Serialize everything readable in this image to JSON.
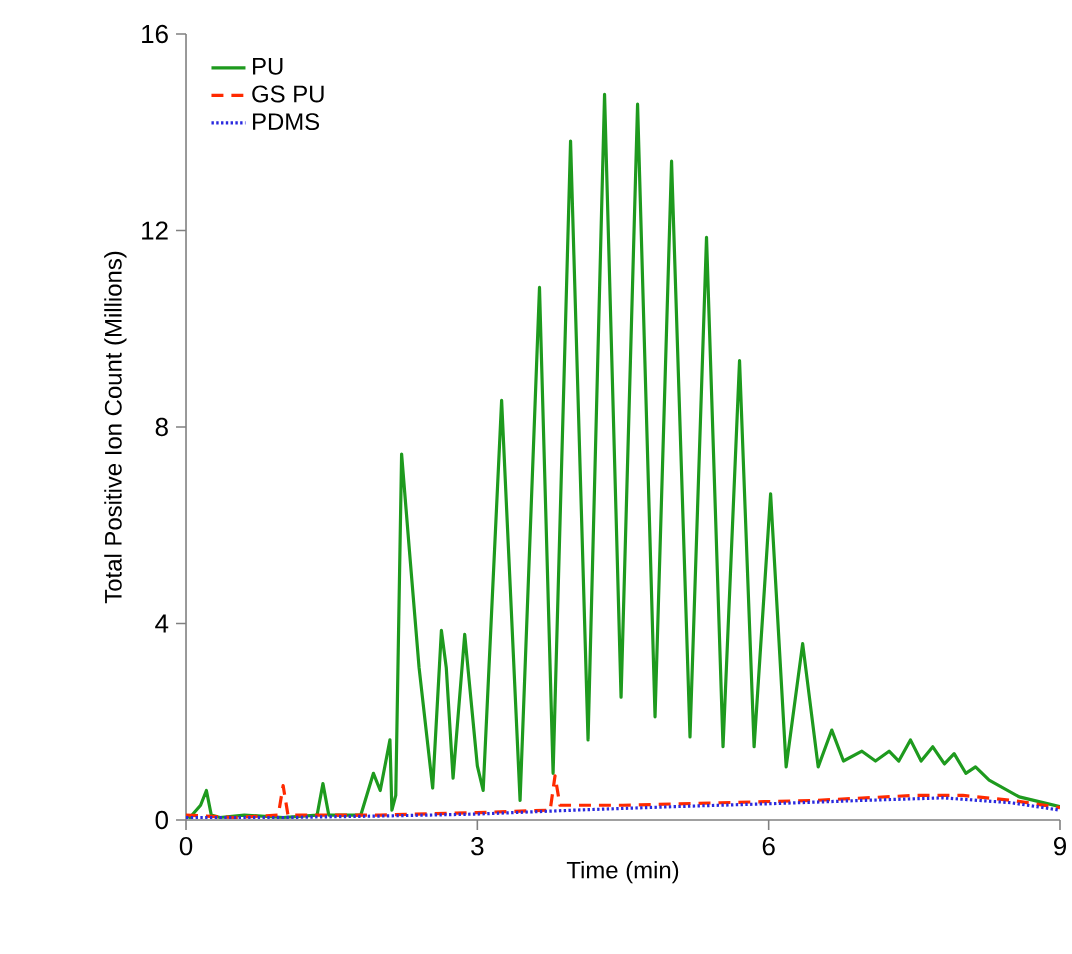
{
  "chart_data": {
    "type": "line",
    "xlabel": "Time (min)",
    "ylabel": "Total Positive Ion Count (Millions)",
    "xlim": [
      0,
      9
    ],
    "ylim": [
      0,
      16
    ],
    "xticks": [
      0,
      3,
      6,
      9
    ],
    "yticks": [
      0,
      4,
      8,
      12,
      16
    ],
    "grid": false,
    "legend": "top left",
    "marker": "none",
    "series": [
      {
        "name": "PU",
        "color": "#1e9a1e",
        "line_style": "solid",
        "x": [
          0.0,
          0.04,
          0.15,
          0.21,
          0.26,
          0.35,
          0.6,
          1.0,
          1.35,
          1.41,
          1.47,
          1.8,
          1.93,
          2.0,
          2.1,
          2.12,
          2.16,
          2.22,
          2.3,
          2.4,
          2.54,
          2.63,
          2.68,
          2.75,
          2.87,
          3.0,
          3.06,
          3.25,
          3.44,
          3.64,
          3.78,
          3.96,
          4.14,
          4.31,
          4.48,
          4.65,
          4.83,
          5.0,
          5.19,
          5.36,
          5.53,
          5.7,
          5.85,
          6.02,
          6.18,
          6.35,
          6.51,
          6.65,
          6.77,
          6.96,
          7.1,
          7.24,
          7.34,
          7.46,
          7.57,
          7.69,
          7.81,
          7.91,
          8.03,
          8.13,
          8.27,
          8.58,
          9.0
        ],
        "values": [
          0.1,
          0.05,
          0.3,
          0.6,
          0.1,
          0.05,
          0.1,
          0.05,
          0.1,
          0.74,
          0.1,
          0.1,
          0.95,
          0.6,
          1.63,
          0.2,
          0.5,
          7.45,
          5.5,
          3.1,
          0.65,
          3.86,
          3.1,
          0.85,
          3.78,
          1.1,
          0.6,
          8.54,
          0.4,
          10.84,
          0.95,
          13.82,
          1.63,
          14.77,
          2.5,
          14.57,
          2.1,
          13.41,
          1.69,
          11.86,
          1.49,
          9.35,
          1.49,
          6.64,
          1.08,
          3.59,
          1.08,
          1.83,
          1.2,
          1.4,
          1.2,
          1.4,
          1.2,
          1.63,
          1.2,
          1.49,
          1.14,
          1.35,
          0.95,
          1.08,
          0.81,
          0.47,
          0.27
        ]
      },
      {
        "name": "GS PU",
        "color": "#ff2a00",
        "line_style": "dashed",
        "x": [
          0.0,
          0.5,
          0.95,
          1.0,
          1.05,
          2.0,
          3.0,
          3.75,
          3.8,
          3.85,
          4.5,
          5.5,
          6.5,
          7.5,
          8.0,
          8.5,
          9.0
        ],
        "values": [
          0.1,
          0.05,
          0.1,
          0.7,
          0.1,
          0.1,
          0.15,
          0.2,
          0.9,
          0.3,
          0.3,
          0.35,
          0.4,
          0.5,
          0.5,
          0.4,
          0.25
        ]
      },
      {
        "name": "PDMS",
        "color": "#2a2adf",
        "line_style": "dotted",
        "x": [
          0.0,
          1.0,
          2.0,
          3.0,
          4.0,
          5.0,
          6.0,
          7.0,
          7.8,
          8.5,
          9.0
        ],
        "values": [
          0.05,
          0.05,
          0.08,
          0.12,
          0.2,
          0.27,
          0.33,
          0.4,
          0.45,
          0.35,
          0.2
        ]
      }
    ]
  }
}
